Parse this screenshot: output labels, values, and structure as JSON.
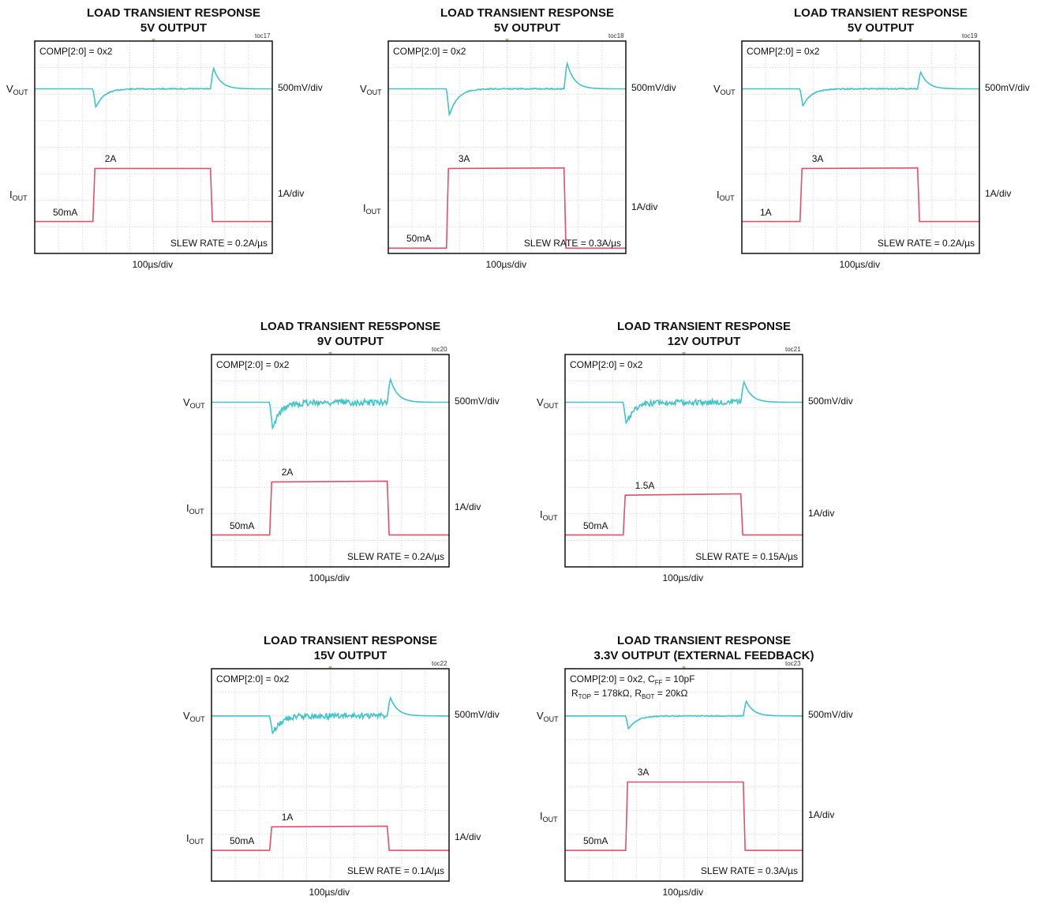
{
  "chart_data": [
    {
      "type": "line",
      "title": "LOAD TRANSIENT RESPONSE",
      "subtitle": "5V OUTPUT",
      "toc": "toc17",
      "annotation": "COMP[2:0] = 0x2",
      "annotation2": "",
      "vout_label": "V",
      "vout_sub": "OUT",
      "iout_label": "I",
      "iout_sub": "OUT",
      "vout_scale": "500mV/div",
      "iout_scale": "1A/div",
      "time_scale": "100µs/div",
      "slew_rate": "SLEW RATE = 0.2A/µs",
      "low_label": "50mA",
      "high_label": "2A",
      "grid": {
        "x_divisions": 10,
        "y_divisions": 8
      },
      "series": [
        {
          "name": "V_OUT",
          "color": "#3fc4c8",
          "baseline_div": 1.8,
          "dip_div": 0.7,
          "overshoot_div": 0.8,
          "noise": 0.02
        },
        {
          "name": "I_OUT",
          "color": "#e0506a",
          "low_div": 6.8,
          "high_div": 4.8,
          "step_up_div": 2.45,
          "step_down_div": 7.4,
          "droop_div": 0
        }
      ]
    },
    {
      "type": "line",
      "title": "LOAD TRANSIENT RESPONSE",
      "subtitle": "5V OUTPUT",
      "toc": "toc18",
      "annotation": "COMP[2:0] = 0x2",
      "annotation2": "",
      "vout_label": "V",
      "vout_sub": "OUT",
      "iout_label": "I",
      "iout_sub": "OUT",
      "vout_scale": "500mV/div",
      "iout_scale": "1A/div",
      "time_scale": "100µs/div",
      "slew_rate": "SLEW RATE = 0.3A/µs",
      "low_label": "50mA",
      "high_label": "3A",
      "grid": {
        "x_divisions": 10,
        "y_divisions": 8
      },
      "series": [
        {
          "name": "V_OUT",
          "color": "#3fc4c8",
          "baseline_div": 1.8,
          "dip_div": 1.0,
          "overshoot_div": 1.0,
          "noise": 0.02
        },
        {
          "name": "I_OUT",
          "color": "#e0506a",
          "low_div": 7.8,
          "high_div": 4.8,
          "step_up_div": 2.45,
          "step_down_div": 7.4,
          "droop_div": -0.02
        }
      ]
    },
    {
      "type": "line",
      "title": "LOAD TRANSIENT RESPONSE",
      "subtitle": "5V OUTPUT",
      "toc": "toc19",
      "annotation": "COMP[2:0] = 0x2",
      "annotation2": "",
      "vout_label": "V",
      "vout_sub": "OUT",
      "iout_label": "I",
      "iout_sub": "OUT",
      "vout_scale": "500mV/div",
      "iout_scale": "1A/div",
      "time_scale": "100µs/div",
      "slew_rate": "SLEW RATE = 0.2A/µs",
      "low_label": "1A",
      "high_label": "3A",
      "grid": {
        "x_divisions": 10,
        "y_divisions": 8
      },
      "series": [
        {
          "name": "V_OUT",
          "color": "#3fc4c8",
          "baseline_div": 1.8,
          "dip_div": 0.65,
          "overshoot_div": 0.65,
          "noise": 0.02
        },
        {
          "name": "I_OUT",
          "color": "#e0506a",
          "low_div": 6.8,
          "high_div": 4.8,
          "step_up_div": 2.45,
          "step_down_div": 7.4,
          "droop_div": -0.02
        }
      ]
    },
    {
      "type": "line",
      "title": "LOAD TRANSIENT RE5SPONSE",
      "subtitle": "9V OUTPUT",
      "toc": "toc20",
      "annotation": "COMP[2:0] = 0x2",
      "annotation2": "",
      "vout_label": "V",
      "vout_sub": "OUT",
      "iout_label": "I",
      "iout_sub": "OUT",
      "vout_scale": "500mV/div",
      "iout_scale": "1A/div",
      "time_scale": "100µs/div",
      "slew_rate": "SLEW RATE = 0.2A/µs",
      "low_label": "50mA",
      "high_label": "2A",
      "grid": {
        "x_divisions": 10,
        "y_divisions": 8
      },
      "series": [
        {
          "name": "V_OUT",
          "color": "#3fc4c8",
          "baseline_div": 1.8,
          "dip_div": 1.0,
          "overshoot_div": 0.9,
          "noise": 0.12
        },
        {
          "name": "I_OUT",
          "color": "#e0506a",
          "low_div": 6.8,
          "high_div": 4.8,
          "step_up_div": 2.45,
          "step_down_div": 7.4,
          "droop_div": -0.03
        }
      ]
    },
    {
      "type": "line",
      "title": "LOAD TRANSIENT RESPONSE",
      "subtitle": "12V OUTPUT",
      "toc": "toc21",
      "annotation": "COMP[2:0] = 0x2",
      "annotation2": "",
      "vout_label": "V",
      "vout_sub": "OUT",
      "iout_label": "I",
      "iout_sub": "OUT",
      "vout_scale": "500mV/div",
      "iout_scale": "1A/div",
      "time_scale": "100µs/div",
      "slew_rate": "SLEW RATE = 0.15A/µs",
      "low_label": "50mA",
      "high_label": "1.5A",
      "grid": {
        "x_divisions": 10,
        "y_divisions": 8
      },
      "series": [
        {
          "name": "V_OUT",
          "color": "#3fc4c8",
          "baseline_div": 1.8,
          "dip_div": 0.8,
          "overshoot_div": 0.8,
          "noise": 0.1
        },
        {
          "name": "I_OUT",
          "color": "#e0506a",
          "low_div": 6.8,
          "high_div": 5.3,
          "step_up_div": 2.45,
          "step_down_div": 7.4,
          "droop_div": -0.05
        }
      ]
    },
    {
      "type": "line",
      "title": "LOAD TRANSIENT RESPONSE",
      "subtitle": "15V OUTPUT",
      "toc": "toc22",
      "annotation": "COMP[2:0] = 0x2",
      "annotation2": "",
      "vout_label": "V",
      "vout_sub": "OUT",
      "iout_label": "I",
      "iout_sub": "OUT",
      "vout_scale": "500mV/div",
      "iout_scale": "1A/div",
      "time_scale": "100µs/div",
      "slew_rate": "SLEW RATE = 0.1A/µs",
      "low_label": "50mA",
      "high_label": "1A",
      "grid": {
        "x_divisions": 10,
        "y_divisions": 9
      },
      "series": [
        {
          "name": "V_OUT",
          "color": "#3fc4c8",
          "baseline_div": 2.0,
          "dip_div": 0.75,
          "overshoot_div": 0.8,
          "noise": 0.12
        },
        {
          "name": "I_OUT",
          "color": "#e0506a",
          "low_div": 7.7,
          "high_div": 6.7,
          "step_up_div": 2.45,
          "step_down_div": 7.4,
          "droop_div": -0.03
        }
      ]
    },
    {
      "type": "line",
      "title": "LOAD TRANSIENT RESPONSE",
      "subtitle": "3.3V OUTPUT (EXTERNAL FEEDBACK)",
      "toc": "toc23",
      "annotation": "COMP[2:0] = 0x2, C",
      "annotation_sub": "FF",
      "annotation_tail": " = 10pF",
      "annotation2": "R",
      "annotation2_sub1": "TOP",
      "annotation2_mid": " = 178kΩ, R",
      "annotation2_sub2": "BOT",
      "annotation2_tail": " = 20kΩ",
      "vout_label": "V",
      "vout_sub": "OUT",
      "iout_label": "I",
      "iout_sub": "OUT",
      "vout_scale": "500mV/div",
      "iout_scale": "1A/div",
      "time_scale": "100µs/div",
      "slew_rate": "SLEW RATE = 0.3A/µs",
      "low_label": "50mA",
      "high_label": "3A",
      "grid": {
        "x_divisions": 10,
        "y_divisions": 9
      },
      "series": [
        {
          "name": "V_OUT",
          "color": "#3fc4c8",
          "baseline_div": 2.0,
          "dip_div": 0.55,
          "overshoot_div": 0.65,
          "noise": 0.02
        },
        {
          "name": "I_OUT",
          "color": "#e0506a",
          "low_div": 7.7,
          "high_div": 4.8,
          "step_up_div": 2.55,
          "step_down_div": 7.5,
          "droop_div": 0
        }
      ]
    }
  ]
}
